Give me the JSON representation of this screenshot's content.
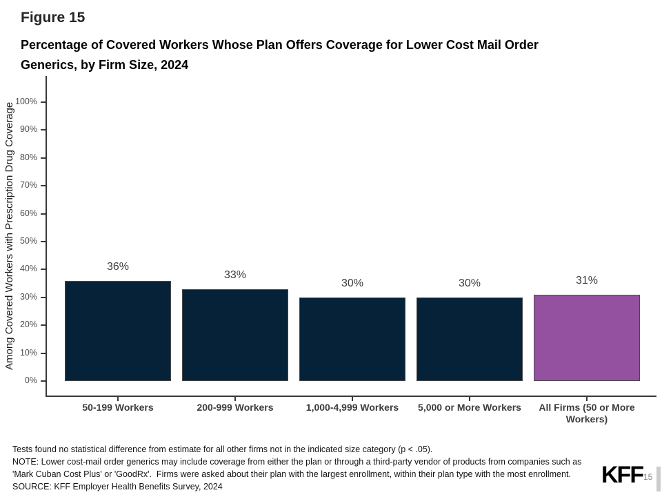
{
  "header": {
    "figure_label": "Figure 15",
    "title_lines": [
      "Percentage of Covered Workers Whose Plan Offers Coverage for Lower Cost Mail Order",
      "Generics, by Firm Size, 2024"
    ]
  },
  "chart_data": {
    "type": "bar",
    "title": "Percentage of Covered Workers Whose Plan Offers Coverage for Lower Cost Mail Order Generics, by Firm Size, 2024",
    "categories": [
      "50-199 Workers",
      "200-999 Workers",
      "1,000-4,999 Workers",
      "5,000 or More Workers",
      "All Firms (50 or More Workers)"
    ],
    "values": [
      36,
      33,
      30,
      30,
      31
    ],
    "value_labels": [
      "36%",
      "33%",
      "30%",
      "30%",
      "31%"
    ],
    "bar_colors": [
      "#052238",
      "#052238",
      "#052238",
      "#052238",
      "#94519F"
    ],
    "bar_border_color": "#4a4a4a",
    "xlabel": "",
    "ylabel": "Among Covered Workers with Prescription Drug Coverage",
    "ylim": [
      0,
      100
    ],
    "ytick_step": 10,
    "ytick_suffix": "%",
    "yticks": [
      "0%",
      "10%",
      "20%",
      "30%",
      "40%",
      "50%",
      "60%",
      "70%",
      "80%",
      "90%",
      "100%"
    ],
    "grid": false,
    "legend": "none"
  },
  "notes": {
    "lines": [
      "Tests found no statistical difference from estimate for all other firms not in the indicated size category (p < .05).",
      "NOTE: Lower cost-mail order generics may include coverage from either the plan or through a third-party vendor of products from companies such as",
      "'Mark Cuban Cost Plus' or 'GoodRx'.  Firms were asked about their plan with the largest enrollment, within their plan type with the most enrollment.",
      "SOURCE: KFF Employer Health Benefits Survey, 2024"
    ]
  },
  "footer": {
    "logo_text": "KFF",
    "page_number": "15"
  }
}
